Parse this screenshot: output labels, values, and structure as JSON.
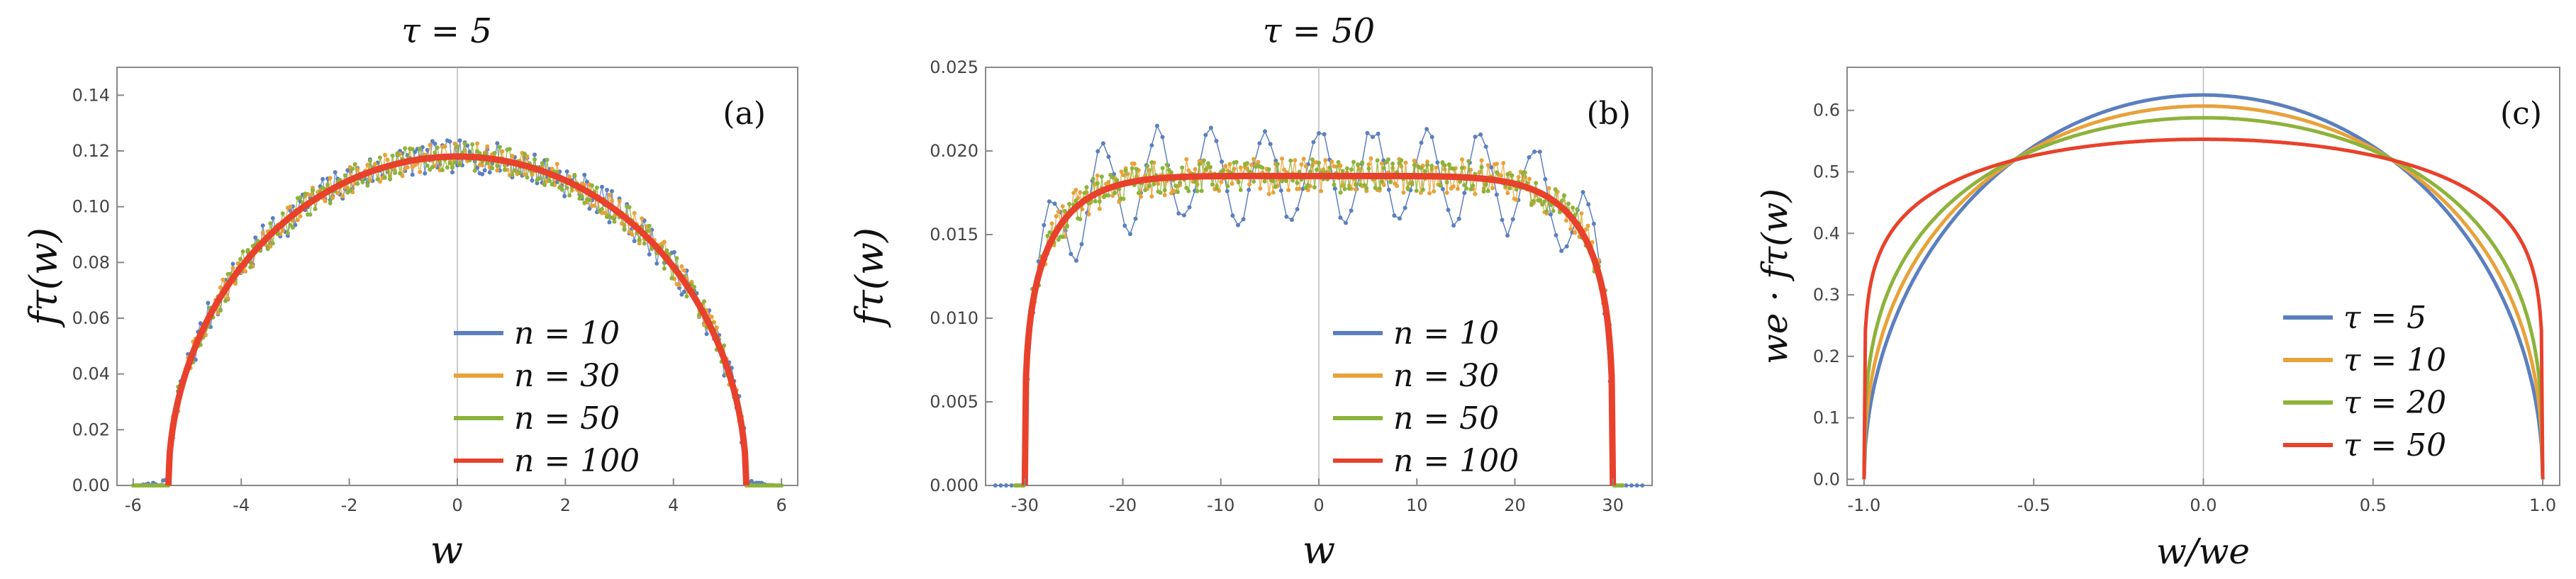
{
  "figure": {
    "panels": [
      "a",
      "b",
      "c"
    ]
  },
  "chart_data": [
    {
      "type": "line",
      "title": "τ = 5",
      "panel_label": "(a)",
      "xlabel": "w",
      "ylabel": "fτ(w)",
      "xlim": [
        -6.3,
        6.3
      ],
      "ylim": [
        0,
        0.15
      ],
      "xticks": [
        -6,
        -4,
        -2,
        0,
        2,
        4,
        6
      ],
      "xticklabels": [
        "-6",
        "-4",
        "-2",
        "0",
        "2",
        "4",
        "6"
      ],
      "yticks": [
        0,
        0.02,
        0.04,
        0.06,
        0.08,
        0.1,
        0.12,
        0.14
      ],
      "yticklabels": [
        "0.00",
        "0.02",
        "0.04",
        "0.06",
        "0.08",
        "0.10",
        "0.12",
        "0.14"
      ],
      "support_halfwidth": 5.35,
      "peak": 0.118,
      "legend_position": "bottom-right",
      "series": [
        {
          "name": "n = 10",
          "label": "n = 10",
          "color": "#5b7fbf",
          "style": "noisy-dots",
          "noise": 0.006,
          "spread_tails": true
        },
        {
          "name": "n = 30",
          "label": "n = 30",
          "color": "#e8a23a",
          "style": "noisy-dots",
          "noise": 0.005
        },
        {
          "name": "n = 50",
          "label": "n = 50",
          "color": "#8db33a",
          "style": "noisy-dots",
          "noise": 0.005
        },
        {
          "name": "n = 100",
          "label": "n = 100",
          "color": "#e8412c",
          "style": "smooth",
          "noise": 0
        }
      ]
    },
    {
      "type": "line",
      "title": "τ = 50",
      "panel_label": "(b)",
      "xlabel": "w",
      "ylabel": "fτ(w)",
      "xlim": [
        -34,
        34
      ],
      "ylim": [
        0,
        0.025
      ],
      "xticks": [
        -30,
        -20,
        -10,
        0,
        10,
        20,
        30
      ],
      "xticklabels": [
        "-30",
        "-20",
        "-10",
        "0",
        "10",
        "20",
        "30"
      ],
      "yticks": [
        0,
        0.005,
        0.01,
        0.015,
        0.02,
        0.025
      ],
      "yticklabels": [
        "0.000",
        "0.005",
        "0.010",
        "0.015",
        "0.020",
        "0.025"
      ],
      "support_halfwidth": 30,
      "peak": 0.0185,
      "legend_position": "bottom-right",
      "series": [
        {
          "name": "n = 10",
          "label": "n = 10",
          "color": "#5b7fbf",
          "style": "oscillating",
          "amplitude": 0.0032,
          "period": 5.5
        },
        {
          "name": "n = 30",
          "label": "n = 30",
          "color": "#e8a23a",
          "style": "noisy-dots",
          "noise": 0.0011
        },
        {
          "name": "n = 50",
          "label": "n = 50",
          "color": "#8db33a",
          "style": "noisy-dots",
          "noise": 0.001
        },
        {
          "name": "n = 100",
          "label": "n = 100",
          "color": "#e8412c",
          "style": "smooth",
          "noise": 0
        }
      ]
    },
    {
      "type": "line",
      "title": "",
      "panel_label": "(c)",
      "xlabel": "w/we",
      "ylabel": "we · fτ(w)",
      "xlim": [
        -1.05,
        1.05
      ],
      "ylim": [
        -0.01,
        0.67
      ],
      "xticks": [
        -1,
        -0.5,
        0,
        0.5,
        1
      ],
      "xticklabels": [
        "-1.0",
        "-0.5",
        "0.0",
        "0.5",
        "1.0"
      ],
      "yticks": [
        0,
        0.1,
        0.2,
        0.3,
        0.4,
        0.5,
        0.6
      ],
      "yticklabels": [
        "0.0",
        "0.1",
        "0.2",
        "0.3",
        "0.4",
        "0.5",
        "0.6"
      ],
      "legend_position": "bottom-right",
      "series": [
        {
          "name": "τ = 5",
          "label": "τ = 5",
          "color": "#5b7fbf",
          "peak": 0.625,
          "shape_exponent": 0.5
        },
        {
          "name": "τ = 10",
          "label": "τ = 10",
          "color": "#e8a23a",
          "peak": 0.607,
          "shape_exponent": 0.42
        },
        {
          "name": "τ = 20",
          "label": "τ = 20",
          "color": "#8db33a",
          "peak": 0.588,
          "shape_exponent": 0.33
        },
        {
          "name": "τ = 50",
          "label": "τ = 50",
          "color": "#e8412c",
          "peak": 0.553,
          "shape_exponent": 0.17
        }
      ]
    }
  ]
}
